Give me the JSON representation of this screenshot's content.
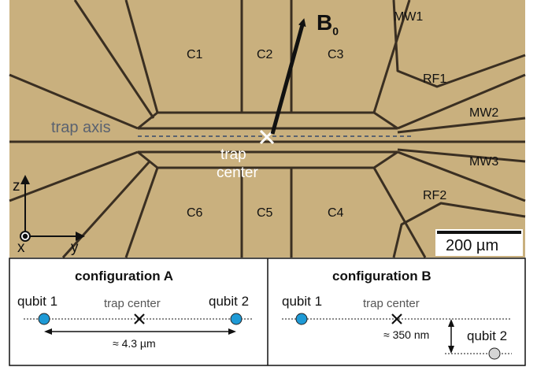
{
  "colors": {
    "chip_background": "#c9b07e",
    "electrode_gaps": "#3a2f22",
    "qubit_blue": "#1e9ad6",
    "qubit_gray": "#d4d4d4",
    "trap_axis_gray": "#5a6270",
    "trap_center_text": "#ffffff"
  },
  "chip": {
    "electrodes": {
      "c1": "C1",
      "c2": "C2",
      "c3": "C3",
      "c4": "C4",
      "c5": "C5",
      "c6": "C6",
      "mw1": "MW1",
      "mw2": "MW2",
      "mw3": "MW3",
      "rf1": "RF1",
      "rf2": "RF2"
    },
    "field_label": "B",
    "field_subscript": "0",
    "trap_axis_label": "trap axis",
    "trap_center_line1": "trap",
    "trap_center_line2": "center",
    "scale_bar_label": "200 µm",
    "axes": {
      "z": "z",
      "x": "x",
      "y": "y"
    }
  },
  "config_a": {
    "title": "configuration A",
    "qubit1": "qubit 1",
    "qubit2": "qubit 2",
    "trap_center": "trap center",
    "distance": "≈ 4.3 µm"
  },
  "config_b": {
    "title": "configuration B",
    "qubit1": "qubit 1",
    "qubit2": "qubit 2",
    "trap_center": "trap center",
    "distance": "≈ 350 nm"
  }
}
